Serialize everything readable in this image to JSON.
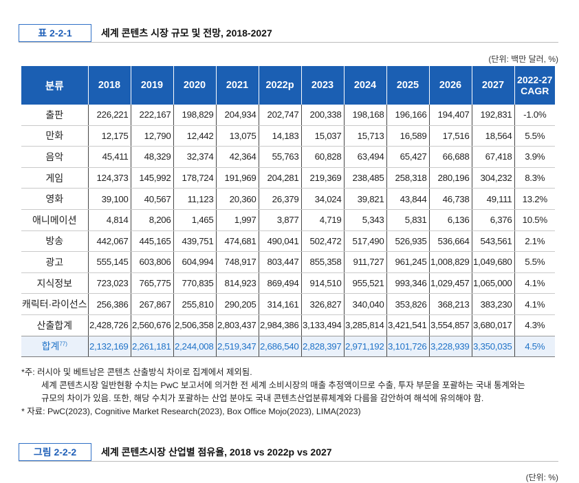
{
  "table_caption": {
    "tag": "표 2-2-1",
    "title": "세계 콘텐츠 시장 규모 및 전망, 2018-2027"
  },
  "table_unit": "(단위: 백만 달러, %)",
  "table": {
    "headers": [
      "분류",
      "2018",
      "2019",
      "2020",
      "2021",
      "2022p",
      "2023",
      "2024",
      "2025",
      "2026",
      "2027",
      "2022-27",
      "CAGR"
    ],
    "rows": [
      {
        "name": "출판",
        "values": [
          "226,221",
          "222,167",
          "198,829",
          "204,934",
          "202,747",
          "200,338",
          "198,168",
          "196,166",
          "194,407",
          "192,831"
        ],
        "cagr": "-1.0%"
      },
      {
        "name": "만화",
        "values": [
          "12,175",
          "12,790",
          "12,442",
          "13,075",
          "14,183",
          "15,037",
          "15,713",
          "16,589",
          "17,516",
          "18,564"
        ],
        "cagr": "5.5%"
      },
      {
        "name": "음악",
        "values": [
          "45,411",
          "48,329",
          "32,374",
          "42,364",
          "55,763",
          "60,828",
          "63,494",
          "65,427",
          "66,688",
          "67,418"
        ],
        "cagr": "3.9%"
      },
      {
        "name": "게임",
        "values": [
          "124,373",
          "145,992",
          "178,724",
          "191,969",
          "204,281",
          "219,369",
          "238,485",
          "258,318",
          "280,196",
          "304,232"
        ],
        "cagr": "8.3%"
      },
      {
        "name": "영화",
        "values": [
          "39,100",
          "40,567",
          "11,123",
          "20,360",
          "26,379",
          "34,024",
          "39,821",
          "43,844",
          "46,738",
          "49,111"
        ],
        "cagr": "13.2%"
      },
      {
        "name": "애니메이션",
        "values": [
          "4,814",
          "8,206",
          "1,465",
          "1,997",
          "3,877",
          "4,719",
          "5,343",
          "5,831",
          "6,136",
          "6,376"
        ],
        "cagr": "10.5%"
      },
      {
        "name": "방송",
        "values": [
          "442,067",
          "445,165",
          "439,751",
          "474,681",
          "490,041",
          "502,472",
          "517,490",
          "526,935",
          "536,664",
          "543,561"
        ],
        "cagr": "2.1%"
      },
      {
        "name": "광고",
        "values": [
          "555,145",
          "603,806",
          "604,994",
          "748,917",
          "803,447",
          "855,358",
          "911,727",
          "961,245",
          "1,008,829",
          "1,049,680"
        ],
        "cagr": "5.5%"
      },
      {
        "name": "지식정보",
        "values": [
          "723,023",
          "765,775",
          "770,835",
          "814,923",
          "869,494",
          "914,510",
          "955,521",
          "993,346",
          "1,029,457",
          "1,065,000"
        ],
        "cagr": "4.1%"
      },
      {
        "name": "캐릭터·라이선스",
        "values": [
          "256,386",
          "267,867",
          "255,810",
          "290,205",
          "314,161",
          "326,827",
          "340,040",
          "353,826",
          "368,213",
          "383,230"
        ],
        "cagr": "4.1%"
      },
      {
        "name": "산출합계",
        "values": [
          "2,428,726",
          "2,560,676",
          "2,506,358",
          "2,803,437",
          "2,984,386",
          "3,133,494",
          "3,285,814",
          "3,421,541",
          "3,554,857",
          "3,680,017"
        ],
        "cagr": "4.3%"
      }
    ],
    "total": {
      "name": "합계",
      "footnote": "77)",
      "values": [
        "2,132,169",
        "2,261,181",
        "2,244,008",
        "2,519,347",
        "2,686,540",
        "2,828,397",
        "2,971,192",
        "3,101,726",
        "3,228,939",
        "3,350,035"
      ],
      "cagr": "4.5%"
    }
  },
  "notes": {
    "line1": "*주: 러시아 및 베트남은 콘텐츠 산출방식 차이로 집계에서 제외됨.",
    "line2": "세계 콘텐츠시장 일반현황 수치는 PwC 보고서에 의거한 전 세계 소비시장의 매출 추정액이므로 수출, 투자 부문을 포괄하는 국내 통계와는",
    "line3": "규모의 차이가 있음. 또한, 해당 수치가 포괄하는 산업 분야도 국내 콘텐츠산업분류체계와 다름을 감안하여 해석에 유의해야 함.",
    "line4": "* 자료: PwC(2023), Cognitive Market Research(2023), Box Office Mojo(2023), LIMA(2023)"
  },
  "figure_caption": {
    "tag": "그림 2-2-2",
    "title": "세계 콘텐츠시장 산업별 점유율, 2018 vs 2022p vs 2027"
  },
  "figure_unit": "(단위: %)"
}
